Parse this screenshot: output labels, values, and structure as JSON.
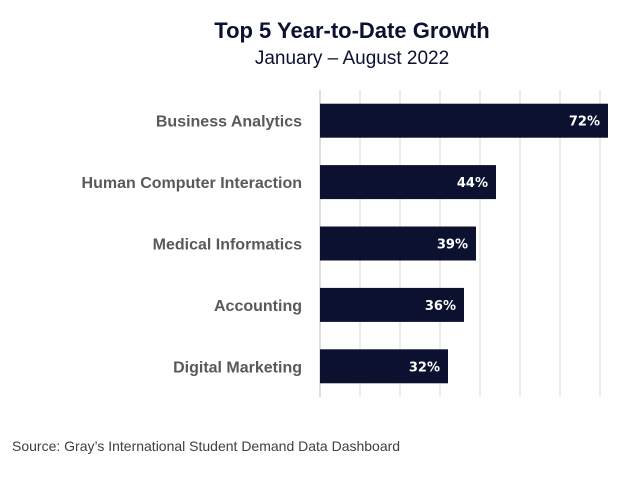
{
  "chart_data": {
    "type": "bar",
    "orientation": "horizontal",
    "title": "Top 5 Year-to-Date Growth",
    "subtitle": "January – August 2022",
    "categories": [
      "Business Analytics",
      "Human Computer Interaction",
      "Medical Informatics",
      "Accounting",
      "Digital Marketing"
    ],
    "values": [
      72,
      44,
      39,
      36,
      32
    ],
    "data_labels": [
      "72%",
      "44%",
      "39%",
      "36%",
      "32%"
    ],
    "xlim": [
      0,
      80
    ],
    "grid": true,
    "legend": "none",
    "colors": {
      "bar": "#0c1130",
      "label": "#ffffff"
    }
  },
  "source": "Source:  Gray’s International Student Demand Data Dashboard"
}
